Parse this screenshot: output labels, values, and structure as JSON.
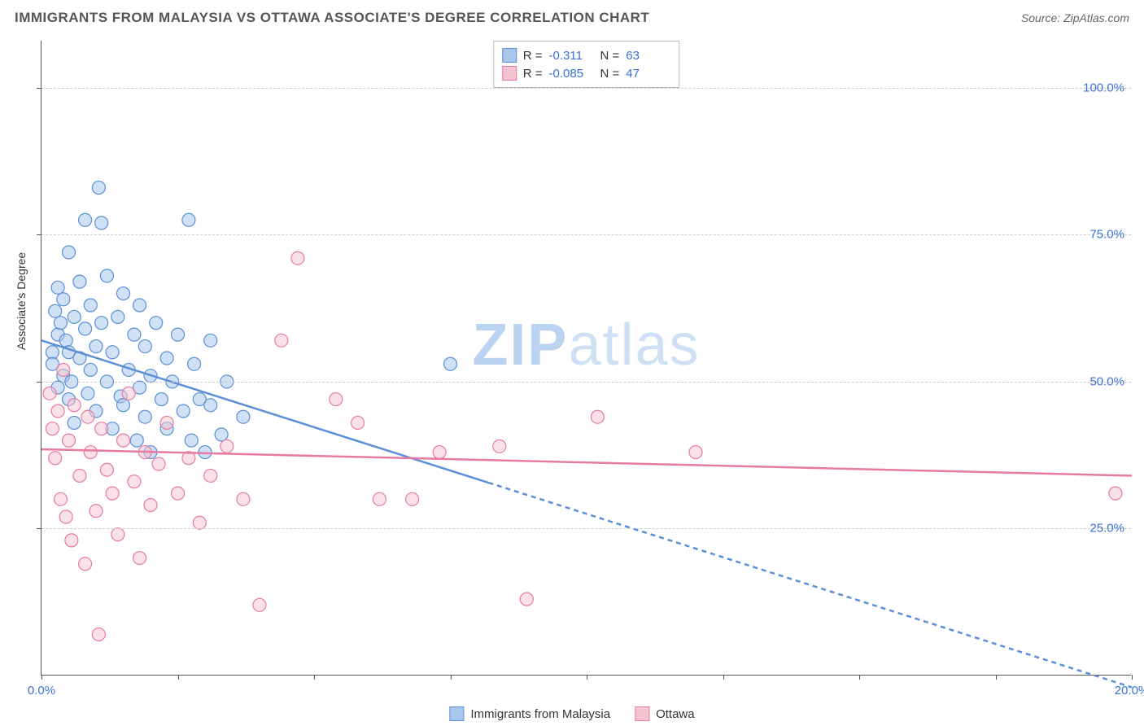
{
  "header": {
    "title": "IMMIGRANTS FROM MALAYSIA VS OTTAWA ASSOCIATE'S DEGREE CORRELATION CHART",
    "source_prefix": "Source: ",
    "source": "ZipAtlas.com"
  },
  "chart": {
    "type": "scatter",
    "y_axis_label": "Associate's Degree",
    "xlim": [
      0,
      20
    ],
    "ylim": [
      0,
      108
    ],
    "x_ticks": [
      0,
      2.5,
      5,
      7.5,
      10,
      12.5,
      15,
      17.5,
      20
    ],
    "x_tick_labels": {
      "0": "0.0%",
      "20": "20.0%"
    },
    "y_gridlines": [
      25,
      50,
      75,
      100
    ],
    "y_tick_labels": {
      "25": "25.0%",
      "50": "50.0%",
      "75": "75.0%",
      "100": "100.0%"
    },
    "background_color": "#ffffff",
    "grid_color": "#cccccc",
    "axis_color": "#555555",
    "tick_label_color": "#3b6fd6",
    "marker_radius": 8,
    "marker_stroke_width": 1.2,
    "line_width": 2.5,
    "watermark_text_bold": "ZIP",
    "watermark_text_light": "atlas",
    "series": [
      {
        "name": "Immigrants from Malaysia",
        "fill": "#a9c7ec",
        "stroke": "#5b8fd6",
        "fill_opacity": 0.55,
        "r_label": "R =",
        "r_value": "-0.311",
        "n_label": "N =",
        "n_value": "63",
        "trend": {
          "x1": 0,
          "y1": 57,
          "x2": 20,
          "y2": -2,
          "solid_until_x": 8.2
        },
        "points": [
          [
            0.2,
            55
          ],
          [
            0.2,
            53
          ],
          [
            0.25,
            62
          ],
          [
            0.3,
            58
          ],
          [
            0.3,
            49
          ],
          [
            0.3,
            66
          ],
          [
            0.35,
            60
          ],
          [
            0.4,
            51
          ],
          [
            0.4,
            64
          ],
          [
            0.45,
            57
          ],
          [
            0.5,
            47
          ],
          [
            0.5,
            55
          ],
          [
            0.5,
            72
          ],
          [
            0.55,
            50
          ],
          [
            0.6,
            61
          ],
          [
            0.6,
            43
          ],
          [
            0.7,
            67
          ],
          [
            0.7,
            54
          ],
          [
            0.8,
            59
          ],
          [
            0.8,
            77.5
          ],
          [
            0.85,
            48
          ],
          [
            0.9,
            63
          ],
          [
            0.9,
            52
          ],
          [
            1.0,
            56
          ],
          [
            1.0,
            45
          ],
          [
            1.05,
            83
          ],
          [
            1.1,
            60
          ],
          [
            1.1,
            77
          ],
          [
            1.2,
            50
          ],
          [
            1.2,
            68
          ],
          [
            1.3,
            42
          ],
          [
            1.3,
            55
          ],
          [
            1.4,
            61
          ],
          [
            1.45,
            47.5
          ],
          [
            1.5,
            46
          ],
          [
            1.5,
            65
          ],
          [
            1.6,
            52
          ],
          [
            1.7,
            58
          ],
          [
            1.75,
            40
          ],
          [
            1.8,
            49
          ],
          [
            1.8,
            63
          ],
          [
            1.9,
            44
          ],
          [
            1.9,
            56
          ],
          [
            2.0,
            51
          ],
          [
            2.0,
            38
          ],
          [
            2.1,
            60
          ],
          [
            2.2,
            47
          ],
          [
            2.3,
            54
          ],
          [
            2.3,
            42
          ],
          [
            2.4,
            50
          ],
          [
            2.5,
            58
          ],
          [
            2.6,
            45
          ],
          [
            2.7,
            77.5
          ],
          [
            2.75,
            40
          ],
          [
            2.8,
            53
          ],
          [
            2.9,
            47
          ],
          [
            3.0,
            38
          ],
          [
            3.1,
            46
          ],
          [
            3.1,
            57
          ],
          [
            3.3,
            41
          ],
          [
            3.4,
            50
          ],
          [
            3.7,
            44
          ],
          [
            7.5,
            53
          ]
        ]
      },
      {
        "name": "Ottawa",
        "fill": "#f4c4d0",
        "stroke": "#e77aa0",
        "fill_opacity": 0.5,
        "r_label": "R =",
        "r_value": "-0.085",
        "n_label": "N =",
        "n_value": "47",
        "trend": {
          "x1": 0,
          "y1": 38.5,
          "x2": 20,
          "y2": 34,
          "solid_until_x": 20
        },
        "points": [
          [
            0.15,
            48
          ],
          [
            0.2,
            42
          ],
          [
            0.25,
            37
          ],
          [
            0.3,
            45
          ],
          [
            0.35,
            30
          ],
          [
            0.4,
            52
          ],
          [
            0.45,
            27
          ],
          [
            0.5,
            40
          ],
          [
            0.55,
            23
          ],
          [
            0.6,
            46
          ],
          [
            0.7,
            34
          ],
          [
            0.8,
            19
          ],
          [
            0.85,
            44
          ],
          [
            0.9,
            38
          ],
          [
            1.0,
            28
          ],
          [
            1.05,
            7
          ],
          [
            1.1,
            42
          ],
          [
            1.2,
            35
          ],
          [
            1.3,
            31
          ],
          [
            1.4,
            24
          ],
          [
            1.5,
            40
          ],
          [
            1.6,
            48
          ],
          [
            1.7,
            33
          ],
          [
            1.8,
            20
          ],
          [
            1.9,
            38
          ],
          [
            2.0,
            29
          ],
          [
            2.15,
            36
          ],
          [
            2.3,
            43
          ],
          [
            2.5,
            31
          ],
          [
            2.7,
            37
          ],
          [
            2.9,
            26
          ],
          [
            3.1,
            34
          ],
          [
            3.4,
            39
          ],
          [
            3.7,
            30
          ],
          [
            4.0,
            12
          ],
          [
            4.4,
            57
          ],
          [
            4.7,
            71
          ],
          [
            5.4,
            47
          ],
          [
            5.8,
            43
          ],
          [
            6.2,
            30
          ],
          [
            6.8,
            30
          ],
          [
            7.3,
            38
          ],
          [
            8.4,
            39
          ],
          [
            8.9,
            13
          ],
          [
            10.2,
            44
          ],
          [
            12.0,
            38
          ],
          [
            19.7,
            31
          ]
        ]
      }
    ],
    "legend": [
      {
        "label": "Immigrants from Malaysia",
        "fill": "#a9c7ec",
        "stroke": "#5b8fd6"
      },
      {
        "label": "Ottawa",
        "fill": "#f4c4d0",
        "stroke": "#e77aa0"
      }
    ]
  }
}
